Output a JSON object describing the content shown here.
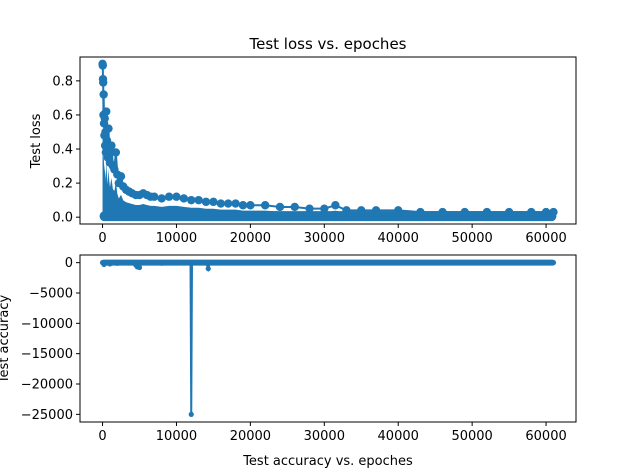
{
  "colors": {
    "series": "#1f77b4",
    "axes": "#000000",
    "background": "#ffffff"
  },
  "chart_data": [
    {
      "type": "scatter",
      "title": "Test loss vs. epoches",
      "xlabel": "",
      "ylabel": "Test loss",
      "xlim": [
        -3050,
        64050
      ],
      "ylim": [
        -0.04,
        0.94
      ],
      "xticks": [
        0,
        10000,
        20000,
        30000,
        40000,
        50000,
        60000
      ],
      "yticks": [
        0.0,
        0.2,
        0.4,
        0.6,
        0.8
      ],
      "xtick_labels": [
        "0",
        "10000",
        "20000",
        "30000",
        "40000",
        "50000",
        "60000"
      ],
      "ytick_labels": [
        "0.0",
        "0.2",
        "0.4",
        "0.6",
        "0.8"
      ],
      "marker": "circle",
      "x": [
        0,
        30,
        60,
        90,
        120,
        150,
        200,
        250,
        300,
        350,
        400,
        450,
        500,
        600,
        700,
        800,
        900,
        1000,
        1200,
        1400,
        1600,
        1800,
        2000,
        2200,
        2500,
        2800,
        3200,
        3600,
        4000,
        4500,
        5000,
        5500,
        6000,
        6500,
        7000,
        8000,
        9000,
        10000,
        11000,
        12000,
        13000,
        14000,
        15000,
        16000,
        17000,
        18000,
        19000,
        20000,
        22000,
        24000,
        26000,
        28000,
        30000,
        31500,
        33000,
        35000,
        37000,
        40000,
        43000,
        46000,
        49000,
        52000,
        55000,
        58000,
        60000,
        61000
      ],
      "y": [
        0.9,
        0.89,
        0.81,
        0.79,
        0.6,
        0.72,
        0.55,
        0.48,
        0.58,
        0.42,
        0.5,
        0.38,
        0.62,
        0.45,
        0.35,
        0.52,
        0.4,
        0.32,
        0.42,
        0.3,
        0.28,
        0.38,
        0.25,
        0.2,
        0.24,
        0.18,
        0.16,
        0.15,
        0.14,
        0.13,
        0.13,
        0.14,
        0.13,
        0.12,
        0.12,
        0.11,
        0.12,
        0.12,
        0.11,
        0.1,
        0.1,
        0.09,
        0.09,
        0.08,
        0.08,
        0.08,
        0.07,
        0.07,
        0.07,
        0.06,
        0.06,
        0.05,
        0.05,
        0.07,
        0.04,
        0.04,
        0.04,
        0.04,
        0.03,
        0.03,
        0.03,
        0.03,
        0.03,
        0.03,
        0.03,
        0.03
      ],
      "band": {
        "x_start": 0,
        "x_end": 61000,
        "y_low": 0.0
      }
    },
    {
      "type": "line",
      "title": "",
      "xlabel": "Test accuracy vs. epoches",
      "ylabel": "Test accuracy",
      "xlim": [
        -3050,
        64050
      ],
      "ylim": [
        -26260,
        1260
      ],
      "xticks": [
        0,
        10000,
        20000,
        30000,
        40000,
        50000,
        60000
      ],
      "yticks": [
        0,
        -5000,
        -10000,
        -15000,
        -20000,
        -25000
      ],
      "xtick_labels": [
        "0",
        "10000",
        "20000",
        "30000",
        "40000",
        "50000",
        "60000"
      ],
      "ytick_labels": [
        "0",
        "−5000",
        "−10000",
        "−15000",
        "−20000",
        "−25000"
      ],
      "marker": "circle",
      "baseline": {
        "x_start": 0,
        "x_end": 61000,
        "y": 0
      },
      "x": [
        0,
        200,
        600,
        1000,
        1500,
        2000,
        3000,
        4500,
        4700,
        5000,
        5200,
        6000,
        8000,
        10000,
        11800,
        11900,
        12000,
        12100,
        12200,
        13000,
        14000,
        14300,
        14500,
        16000,
        20000,
        30000,
        40000,
        50000,
        61000
      ],
      "y": [
        0,
        -300,
        0,
        -200,
        0,
        -100,
        0,
        -400,
        -700,
        -800,
        0,
        0,
        -80,
        0,
        0,
        0,
        -25000,
        0,
        0,
        0,
        0,
        -1000,
        0,
        0,
        0,
        0,
        0,
        0,
        0
      ]
    }
  ]
}
